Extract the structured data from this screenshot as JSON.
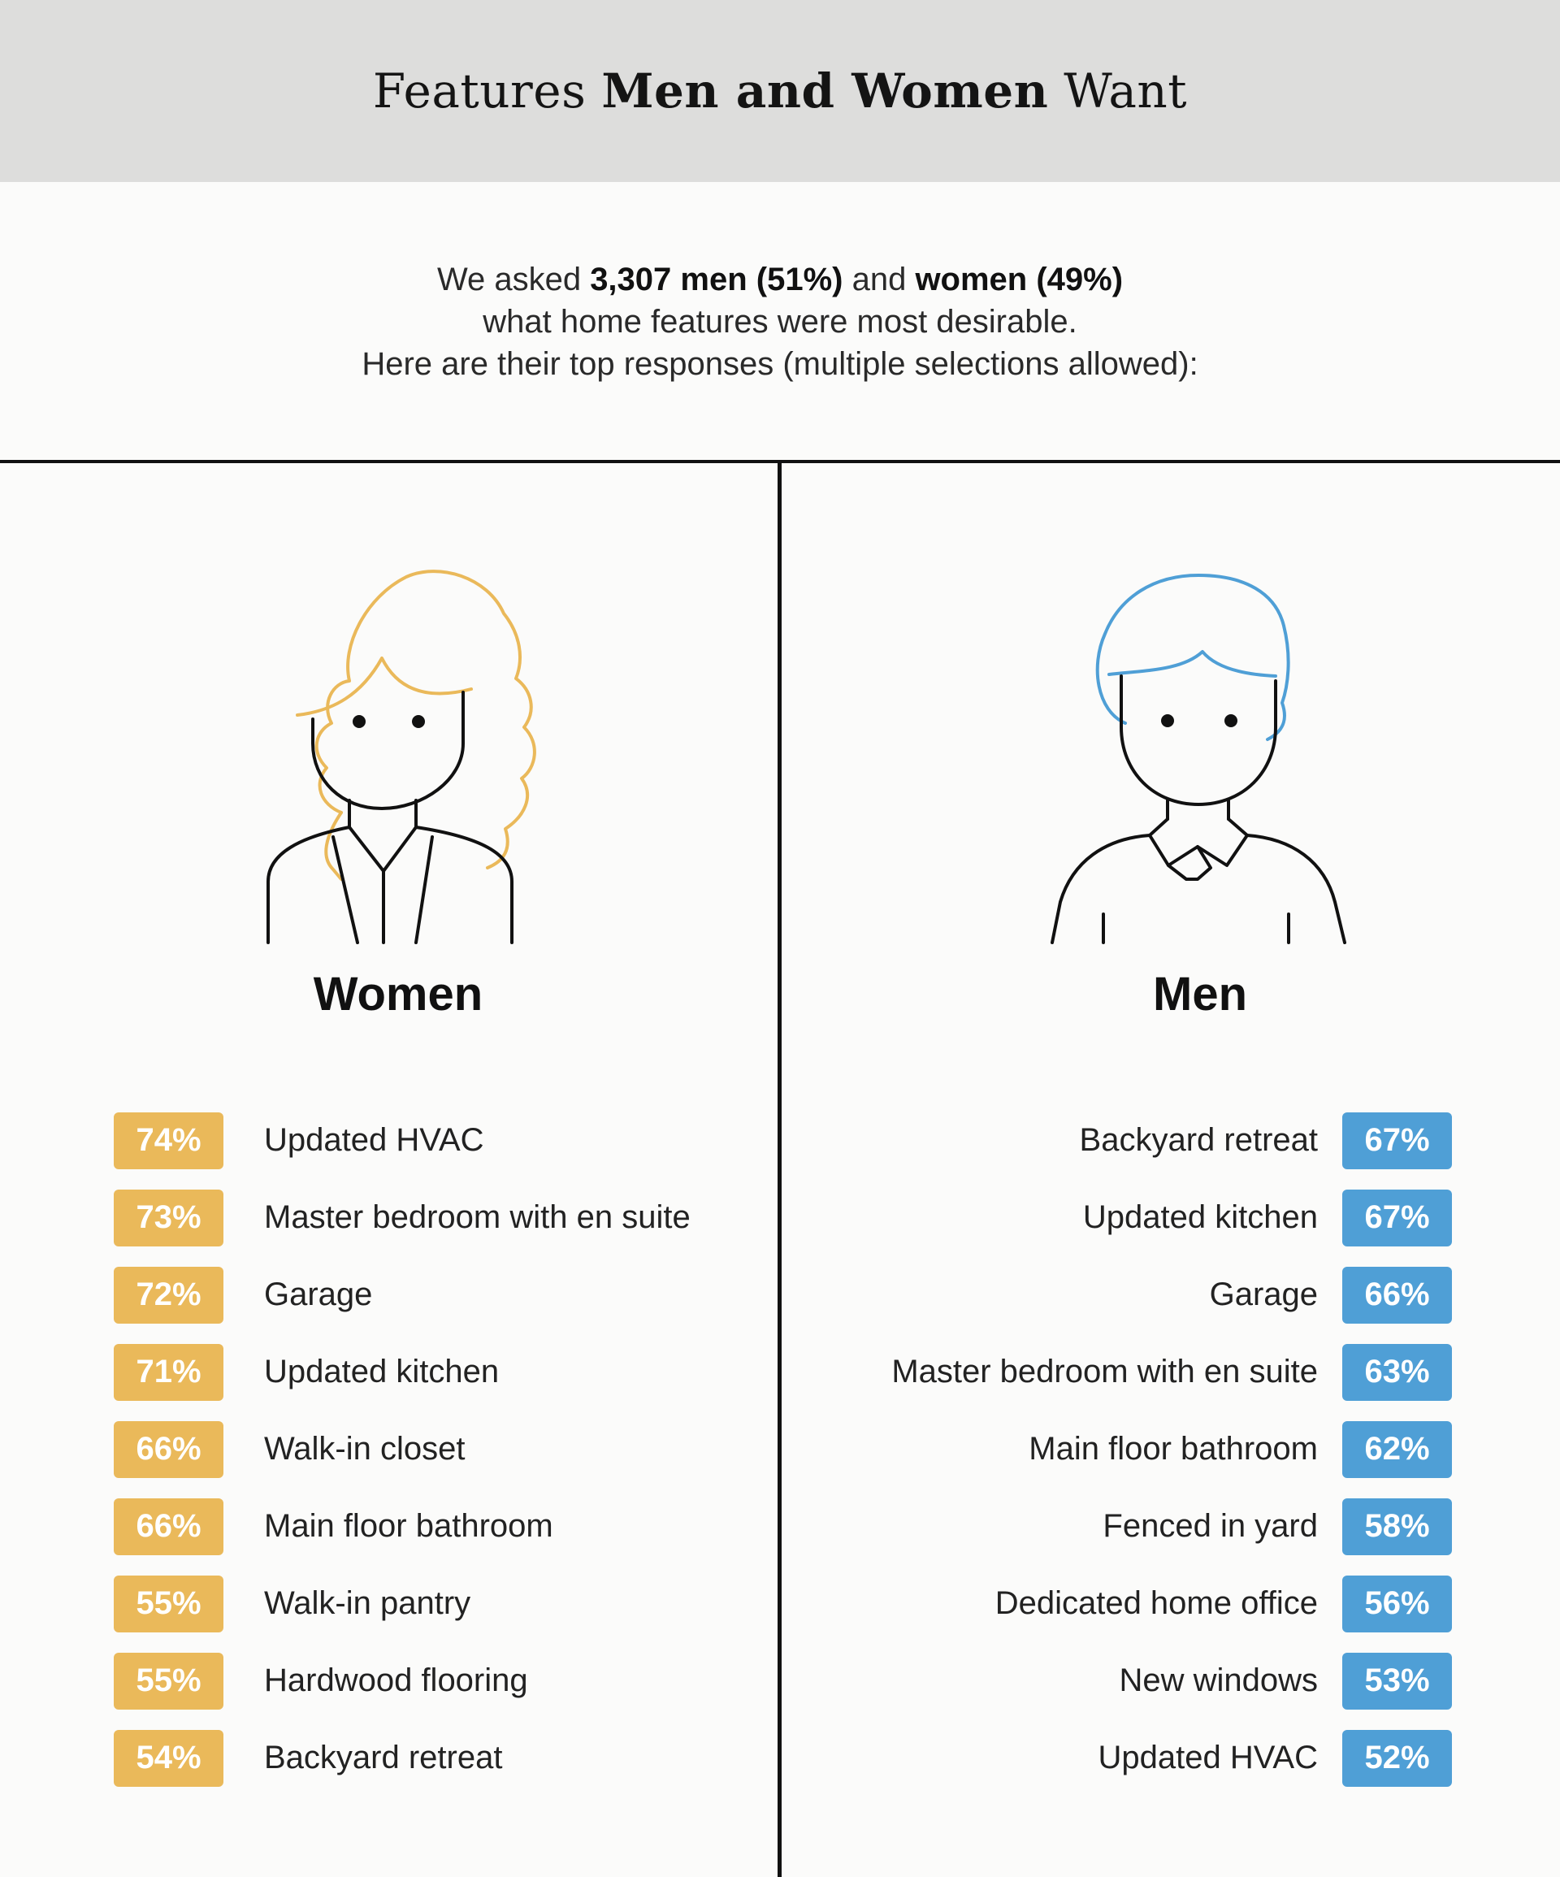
{
  "title": {
    "normal_1": "Features ",
    "bold": "Men and Women",
    "normal_2": " Want"
  },
  "intro": {
    "line1_prefix": "We asked ",
    "line1_bold1": "3,307 men (51%)",
    "line1_mid": " and ",
    "line1_bold2": "women (49%)",
    "line2": "what home features were most desirable.",
    "line3": "Here are their top responses (multiple selections allowed):"
  },
  "colors": {
    "women_accent": "#eab95a",
    "men_accent": "#4f9fd6"
  },
  "women": {
    "title": "Women",
    "icon": "woman-avatar-icon",
    "items": [
      {
        "value": "74%",
        "label": "Updated HVAC"
      },
      {
        "value": "73%",
        "label": "Master bedroom with en suite"
      },
      {
        "value": "72%",
        "label": "Garage"
      },
      {
        "value": "71%",
        "label": "Updated kitchen"
      },
      {
        "value": "66%",
        "label": "Walk-in closet"
      },
      {
        "value": "66%",
        "label": "Main floor bathroom"
      },
      {
        "value": "55%",
        "label": "Walk-in pantry"
      },
      {
        "value": "55%",
        "label": "Hardwood flooring"
      },
      {
        "value": "54%",
        "label": "Backyard retreat"
      }
    ]
  },
  "men": {
    "title": "Men",
    "icon": "man-avatar-icon",
    "items": [
      {
        "value": "67%",
        "label": "Backyard retreat"
      },
      {
        "value": "67%",
        "label": "Updated kitchen"
      },
      {
        "value": "66%",
        "label": "Garage"
      },
      {
        "value": "63%",
        "label": "Master bedroom with en suite"
      },
      {
        "value": "62%",
        "label": "Main floor bathroom"
      },
      {
        "value": "58%",
        "label": "Fenced in yard"
      },
      {
        "value": "56%",
        "label": "Dedicated home office"
      },
      {
        "value": "53%",
        "label": "New windows"
      },
      {
        "value": "52%",
        "label": "Updated HVAC"
      }
    ]
  }
}
